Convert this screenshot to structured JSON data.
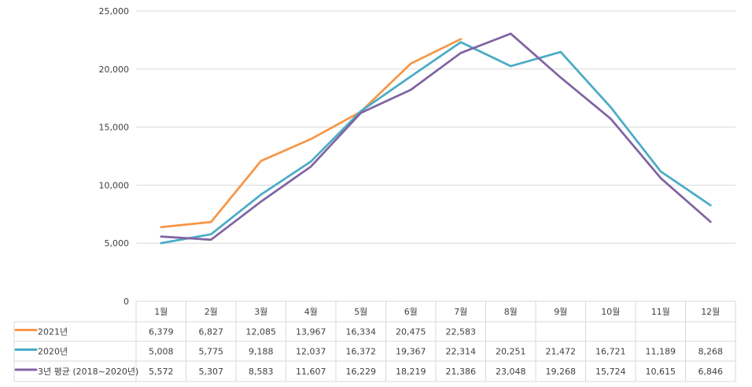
{
  "chart_data": {
    "type": "line",
    "title": "",
    "xlabel": "",
    "ylabel": "",
    "ylim": [
      0,
      25000
    ],
    "yticks": [
      0,
      5000,
      10000,
      15000,
      20000,
      25000
    ],
    "ytick_labels": [
      "0",
      "5,000",
      "10,000",
      "15,000",
      "20,000",
      "25,000"
    ],
    "grid": "horizontal",
    "legend": "data-table-below",
    "categories": [
      "1월",
      "2월",
      "3월",
      "4월",
      "5월",
      "6월",
      "7월",
      "8월",
      "9월",
      "10월",
      "11월",
      "12월"
    ],
    "series": [
      {
        "name": "2021년",
        "color": "#F79646",
        "values": [
          6379,
          6827,
          12085,
          13967,
          16334,
          20475,
          22583,
          null,
          null,
          null,
          null,
          null
        ],
        "labels": [
          "6,379",
          "6,827",
          "12,085",
          "13,967",
          "16,334",
          "20,475",
          "22,583",
          "",
          "",
          "",
          "",
          ""
        ]
      },
      {
        "name": "2020년",
        "color": "#4BACC6",
        "values": [
          5008,
          5775,
          9188,
          12037,
          16372,
          19367,
          22314,
          20251,
          21472,
          16721,
          11189,
          8268
        ],
        "labels": [
          "5,008",
          "5,775",
          "9,188",
          "12,037",
          "16,372",
          "19,367",
          "22,314",
          "20,251",
          "21,472",
          "16,721",
          "11,189",
          "8,268"
        ]
      },
      {
        "name": "3년 평균 (2018~2020년)",
        "color": "#8064A2",
        "values": [
          5572,
          5307,
          8583,
          11607,
          16229,
          18219,
          21386,
          23048,
          19268,
          15724,
          10615,
          6846
        ],
        "labels": [
          "5,572",
          "5,307",
          "8,583",
          "11,607",
          "16,229",
          "18,219",
          "21,386",
          "23,048",
          "19,268",
          "15,724",
          "10,615",
          "6,846"
        ]
      }
    ]
  }
}
